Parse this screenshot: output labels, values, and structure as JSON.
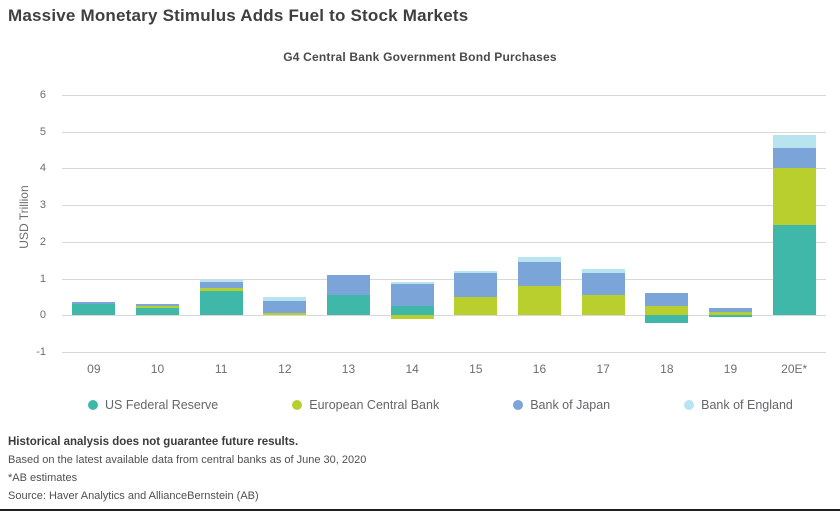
{
  "title": "Massive Monetary Stimulus Adds Fuel to Stock Markets",
  "chart_data": {
    "type": "bar",
    "stacked": true,
    "title": "G4 Central Bank Government Bond Purchases",
    "xlabel": "",
    "ylabel": "USD Trillion",
    "ylim": [
      -1,
      6
    ],
    "ytick_step": 1,
    "grid": true,
    "legend_position": "bottom",
    "categories": [
      "09",
      "10",
      "11",
      "12",
      "13",
      "14",
      "15",
      "16",
      "17",
      "18",
      "19",
      "20E*"
    ],
    "series": [
      {
        "name": "US Federal Reserve",
        "color": "#3fb8aa",
        "values": [
          0.3,
          0.2,
          0.65,
          0.0,
          0.55,
          0.25,
          0.0,
          0.0,
          0.0,
          -0.2,
          -0.05,
          2.45
        ]
      },
      {
        "name": "European Central Bank",
        "color": "#b9cf2d",
        "values": [
          0.0,
          0.05,
          0.1,
          0.05,
          0.0,
          -0.1,
          0.5,
          0.8,
          0.55,
          0.25,
          0.1,
          1.55
        ]
      },
      {
        "name": "Bank of Japan",
        "color": "#7ba4d9",
        "values": [
          0.05,
          0.05,
          0.15,
          0.35,
          0.55,
          0.6,
          0.65,
          0.65,
          0.6,
          0.35,
          0.1,
          0.55
        ]
      },
      {
        "name": "Bank of England",
        "color": "#b8e4f0",
        "values": [
          0.0,
          0.0,
          0.05,
          0.1,
          0.0,
          0.05,
          0.05,
          0.15,
          0.1,
          0.0,
          0.0,
          0.35
        ]
      }
    ]
  },
  "footnotes": {
    "line1": "Historical analysis does not guarantee future results.",
    "line2": "Based on the latest available data from central banks as of June 30, 2020",
    "line3": "*AB estimates",
    "line4": "Source: Haver Analytics and AllianceBernstein (AB)"
  },
  "colors": {
    "grid": "#d8d8d8",
    "axis_text": "#6d6e71",
    "title_text": "#3f3f3f"
  }
}
